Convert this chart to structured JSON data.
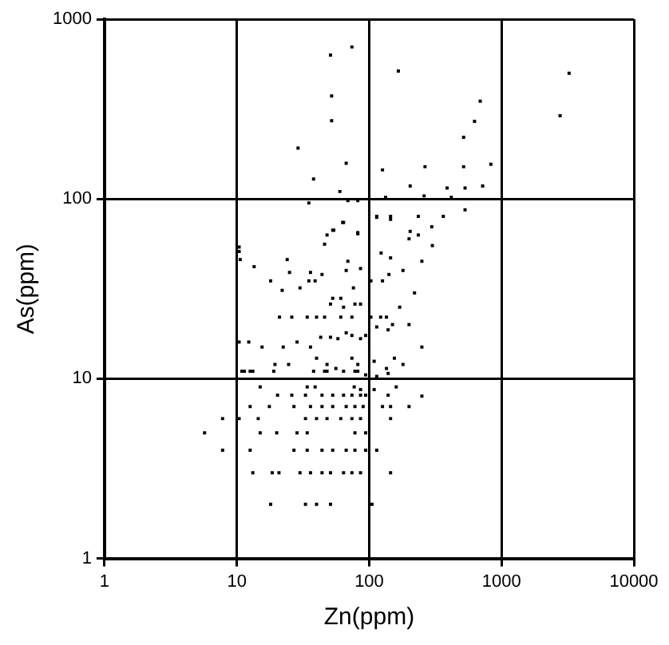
{
  "chart_data": {
    "type": "scatter",
    "xlabel": "Zn(ppm)",
    "ylabel": "As(ppm)",
    "log": "xy",
    "grid": true,
    "legend": false,
    "marker": "square",
    "xlim": [
      1,
      10000
    ],
    "ylim": [
      1,
      1000
    ],
    "xticks": [
      1,
      10,
      100,
      1000,
      10000
    ],
    "yticks": [
      1,
      10,
      100,
      1000
    ],
    "x": [
      51,
      74,
      166,
      52,
      52,
      29,
      38,
      67,
      126,
      264,
      517,
      830,
      2770,
      3240,
      690,
      625,
      517,
      204,
      388,
      530,
      720,
      60,
      35,
      69,
      82,
      133,
      260,
      417,
      530,
      114,
      145,
      235,
      363,
      64,
      53,
      82,
      204,
      235,
      297,
      10.4,
      10.4,
      10.6,
      13.5,
      18,
      22,
      24,
      25,
      30,
      36,
      44,
      35,
      39,
      46,
      48,
      54,
      63,
      82,
      69,
      67,
      86,
      114,
      145,
      123,
      145,
      141,
      103,
      126,
      53,
      61,
      76,
      78,
      86,
      51,
      64,
      21,
      26,
      34,
      40,
      46,
      61,
      74,
      103,
      122,
      135,
      28.5,
      36,
      43,
      51,
      58,
      67,
      74,
      86,
      94,
      10.4,
      12.3,
      15.5,
      22.4,
      114,
      139,
      150,
      19.4,
      24.6,
      40,
      48,
      46,
      56,
      74,
      82,
      78,
      109,
      135,
      155,
      11.4,
      13.2,
      94,
      114,
      139,
      10.9,
      12.6,
      19,
      38,
      48,
      64,
      82,
      15,
      20.3,
      26,
      33,
      44,
      53,
      64,
      74,
      86,
      94,
      34,
      39,
      77,
      86,
      109,
      139,
      12.6,
      17.6,
      27,
      36,
      44,
      53,
      67,
      78,
      90,
      126,
      145,
      7.8,
      10.4,
      14.5,
      33,
      40,
      48,
      61,
      74,
      86,
      145,
      5.7,
      15,
      20,
      28.5,
      34,
      78,
      94,
      7.8,
      12.6,
      27,
      34,
      44,
      53,
      67,
      78,
      94,
      114,
      13.2,
      18.5,
      20.8,
      30,
      36,
      44,
      51,
      64,
      74,
      86,
      145,
      18,
      33,
      40,
      51,
      105,
      200,
      250,
      180,
      300,
      220,
      170,
      200,
      250,
      180,
      160,
      200,
      250
    ],
    "values": [
      631,
      700,
      515,
      374,
      272,
      192,
      129,
      158,
      145,
      151,
      151,
      156,
      290,
      500,
      350,
      270,
      220,
      118,
      115,
      115,
      118,
      110,
      95,
      98,
      98,
      102,
      104,
      102,
      87,
      80,
      80,
      80,
      80,
      74,
      67,
      64,
      66,
      63,
      70,
      54,
      51,
      46,
      42,
      35,
      31,
      46,
      39,
      32,
      39,
      38,
      35,
      35,
      56,
      63,
      67,
      74,
      65,
      45,
      40,
      41,
      79,
      77,
      50,
      47,
      38,
      35,
      35,
      28,
      28,
      32,
      26,
      26,
      26,
      25,
      22,
      22,
      22,
      22,
      22,
      22,
      22,
      22,
      22,
      22,
      16,
      15,
      17,
      17,
      16.7,
      18,
      17.4,
      16.7,
      17.4,
      16,
      16,
      15,
      15,
      19.4,
      18.7,
      20,
      12,
      12,
      13,
      12,
      11,
      11.4,
      13,
      12,
      11,
      12.5,
      11.4,
      13,
      11,
      11,
      10.5,
      10.3,
      10.7,
      11,
      11,
      11,
      11,
      11,
      11,
      11,
      9,
      8.1,
      8.1,
      8.1,
      8.1,
      8.1,
      8.1,
      8.1,
      8.1,
      8.1,
      9,
      9,
      9,
      8.7,
      8.7,
      8.1,
      7,
      7,
      7,
      7,
      7,
      7,
      7,
      7,
      7,
      7,
      7,
      6,
      6,
      6,
      6,
      6,
      6,
      6,
      6,
      6,
      6,
      5,
      5,
      5,
      5,
      5,
      5,
      5,
      4,
      4,
      4,
      4,
      4,
      4,
      4,
      4,
      4,
      4,
      3,
      3,
      3,
      3,
      3,
      3,
      3,
      3,
      3,
      3,
      3,
      2,
      2,
      2,
      2,
      2,
      60,
      45,
      40,
      55,
      30,
      25,
      20,
      15,
      12,
      9,
      7,
      8
    ],
    "color": "#000000"
  }
}
